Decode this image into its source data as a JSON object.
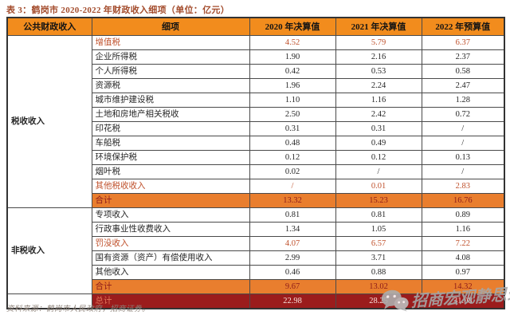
{
  "title": "表 3：鹤岗市 2020-2022 年财政收入细项（单位：亿元）",
  "table": {
    "headers": [
      "公共财政收入",
      "细项",
      "2020 年决算值",
      "2021 年决算值",
      "2022 年预算值"
    ],
    "row_groups": [
      {
        "name": "税收收入",
        "start": 0,
        "span": 12
      },
      {
        "name": "非税收入",
        "start": 12,
        "span": 6
      },
      {
        "name": "",
        "start": 18,
        "span": 1
      }
    ],
    "rows": [
      {
        "label": "增值税",
        "values": [
          "4.52",
          "5.79",
          "6.37"
        ],
        "style": "highlight"
      },
      {
        "label": "企业所得税",
        "values": [
          "1.90",
          "2.16",
          "2.37"
        ],
        "style": "normal"
      },
      {
        "label": "个人所得税",
        "values": [
          "0.42",
          "0.53",
          "0.58"
        ],
        "style": "normal"
      },
      {
        "label": "资源税",
        "values": [
          "1.96",
          "2.24",
          "2.47"
        ],
        "style": "normal"
      },
      {
        "label": "城市维护建设税",
        "values": [
          "1.10",
          "1.16",
          "1.28"
        ],
        "style": "normal"
      },
      {
        "label": "土地和房地产相关税收",
        "values": [
          "2.50",
          "2.42",
          "0.72"
        ],
        "style": "normal"
      },
      {
        "label": "印花税",
        "values": [
          "0.31",
          "0.31",
          "/"
        ],
        "style": "normal"
      },
      {
        "label": "车船税",
        "values": [
          "0.48",
          "0.49",
          "/"
        ],
        "style": "normal"
      },
      {
        "label": "环境保护税",
        "values": [
          "0.12",
          "0.12",
          "0.13"
        ],
        "style": "normal"
      },
      {
        "label": "烟叶税",
        "values": [
          "0.02",
          "/",
          "/"
        ],
        "style": "normal"
      },
      {
        "label": "其他税收收入",
        "values": [
          "/",
          "0.01",
          "2.83"
        ],
        "style": "highlight"
      },
      {
        "label": "合计",
        "values": [
          "13.32",
          "15.23",
          "16.76"
        ],
        "style": "subtotal"
      },
      {
        "label": "专项收入",
        "values": [
          "0.81",
          "0.81",
          "0.89"
        ],
        "style": "normal"
      },
      {
        "label": "行政事业性收费收入",
        "values": [
          "1.34",
          "1.05",
          "1.16"
        ],
        "style": "normal"
      },
      {
        "label": "罚没收入",
        "values": [
          "4.07",
          "6.57",
          "7.22"
        ],
        "style": "highlight"
      },
      {
        "label": "国有资源（资产）有偿使用收入",
        "values": [
          "2.99",
          "3.71",
          "4.08"
        ],
        "style": "normal"
      },
      {
        "label": "其他收入",
        "values": [
          "0.46",
          "0.88",
          "0.97"
        ],
        "style": "normal"
      },
      {
        "label": "合计",
        "values": [
          "9.67",
          "13.02",
          "14.32"
        ],
        "style": "subtotal"
      },
      {
        "label": "总计",
        "values": [
          "22.98",
          "28.25",
          "31.08"
        ],
        "style": "total"
      }
    ]
  },
  "source": {
    "text": "资料来源：鹤岗市人民政府，招商证券。"
  },
  "watermark": {
    "text": "招商宏观静思录",
    "icon": "wechat-icon"
  },
  "colors": {
    "header_bg": "#F28C1D",
    "subtotal_bg": "#E97E2E",
    "total_bg": "#9B1C1C",
    "highlight_text": "#C0522D",
    "subtotal_text": "#8C1A1A",
    "total_label_text": "#E2755A",
    "total_value_text": "#F9E3DC",
    "title_text": "#A34B2B",
    "source_text": "#8C8178",
    "watermark_text": "#A6A6A6",
    "border": "#4a4a4a"
  }
}
